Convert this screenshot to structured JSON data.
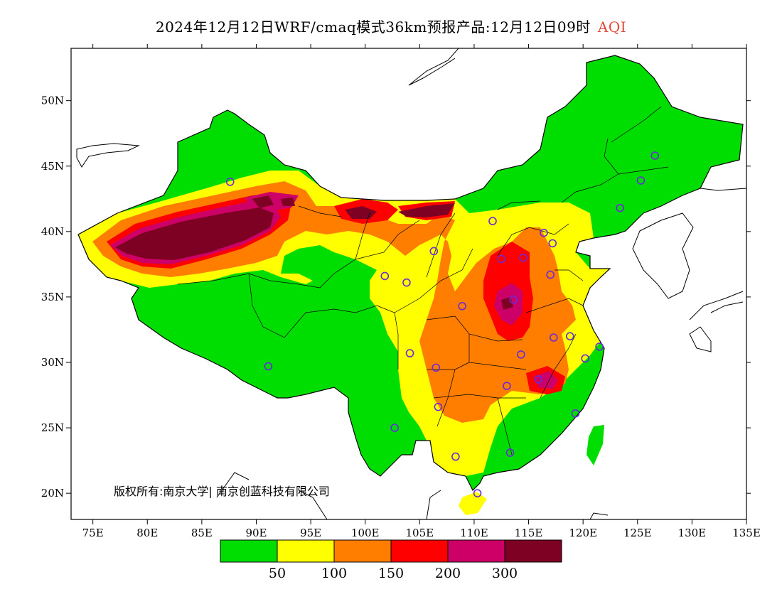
{
  "title": {
    "main": "2024年12月12日WRF/cmaq模式36km预报产品:12月12日09时",
    "variable": "AQI",
    "variable_color": "#e0483a"
  },
  "map": {
    "lon_range": [
      73,
      135
    ],
    "lat_range": [
      18,
      54
    ],
    "x_ticks": [
      "75E",
      "80E",
      "85E",
      "90E",
      "95E",
      "100E",
      "105E",
      "110E",
      "115E",
      "120E",
      "125E",
      "130E",
      "135E"
    ],
    "x_tick_values": [
      75,
      80,
      85,
      90,
      95,
      100,
      105,
      110,
      115,
      120,
      125,
      130,
      135
    ],
    "y_ticks": [
      "20N",
      "25N",
      "30N",
      "35N",
      "40N",
      "45N",
      "50N"
    ],
    "y_tick_values": [
      20,
      25,
      30,
      35,
      40,
      45,
      50
    ],
    "copyright": "版权所有:南京大学| 南京创蓝科技有限公司",
    "station_marker_color": "#6a2bd8",
    "stations": [
      [
        126.6,
        45.8
      ],
      [
        125.3,
        43.9
      ],
      [
        123.4,
        41.8
      ],
      [
        87.6,
        43.8
      ],
      [
        91.1,
        29.7
      ],
      [
        103.8,
        36.1
      ],
      [
        106.3,
        38.5
      ],
      [
        108.9,
        34.3
      ],
      [
        111.7,
        40.8
      ],
      [
        113.6,
        34.8
      ],
      [
        114.5,
        38.0
      ],
      [
        116.4,
        39.9
      ],
      [
        117.2,
        39.1
      ],
      [
        117.0,
        36.7
      ],
      [
        112.5,
        37.9
      ],
      [
        114.3,
        30.6
      ],
      [
        113.0,
        28.2
      ],
      [
        115.9,
        28.7
      ],
      [
        117.3,
        31.9
      ],
      [
        118.8,
        32.0
      ],
      [
        120.2,
        30.3
      ],
      [
        121.5,
        31.2
      ],
      [
        119.3,
        26.1
      ],
      [
        113.3,
        23.1
      ],
      [
        110.3,
        20.0
      ],
      [
        108.3,
        22.8
      ],
      [
        106.7,
        26.6
      ],
      [
        106.5,
        29.6
      ],
      [
        104.1,
        30.7
      ],
      [
        102.7,
        25.0
      ],
      [
        101.8,
        36.6
      ]
    ]
  },
  "legend": {
    "colors": [
      "#00dd00",
      "#ffff00",
      "#ff7e00",
      "#ff0000",
      "#cc0066",
      "#7e0023"
    ],
    "labels": [
      "50",
      "100",
      "150",
      "200",
      "300"
    ]
  }
}
